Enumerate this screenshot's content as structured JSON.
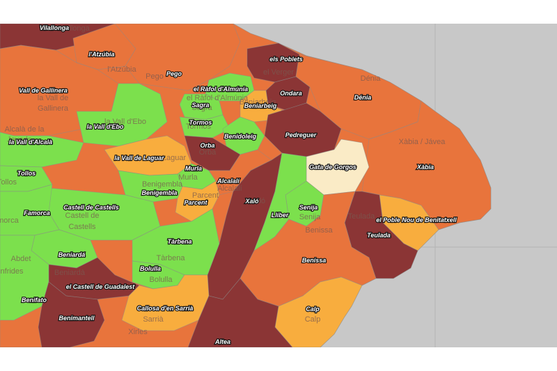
{
  "legend_colors": {
    "darkred": "#8b3535",
    "orange": "#e8743c",
    "lightorange": "#f8ad3e",
    "green": "#7ce04d",
    "cream": "#faebc6",
    "sea": "#c8c8c8"
  },
  "municipalities": [
    {
      "label": "Vilallonga",
      "color": "darkred"
    },
    {
      "label": "l'Atzúbia",
      "color": "orange"
    },
    {
      "label": "Pego",
      "color": "orange"
    },
    {
      "label": "els Poblets",
      "color": "darkred"
    },
    {
      "label": "Vall de Gallinera",
      "color": "orange"
    },
    {
      "label": "el Ràfol d'Almúnia",
      "color": "green"
    },
    {
      "label": "Ondara",
      "color": "darkred"
    },
    {
      "label": "Dénia",
      "color": "orange"
    },
    {
      "label": "Sagra",
      "color": "green"
    },
    {
      "label": "Beniarbeig",
      "color": "lightorange"
    },
    {
      "label": "la Vall d'Ebo",
      "color": "green"
    },
    {
      "label": "Tormos",
      "color": "green"
    },
    {
      "label": "Pedreguer",
      "color": "darkred"
    },
    {
      "label": "Benidoleig",
      "color": "green"
    },
    {
      "label": "la Vall d'Alcalà",
      "color": "green"
    },
    {
      "label": "Orba",
      "color": "darkred"
    },
    {
      "label": "Xàbia",
      "color": "orange"
    },
    {
      "label": "la Vall de Laguar",
      "color": "lightorange"
    },
    {
      "label": "Gata de Gorgos",
      "color": "cream"
    },
    {
      "label": "Murla",
      "color": "green"
    },
    {
      "label": "Tollos",
      "color": "green"
    },
    {
      "label": "Alcalalí",
      "color": "orange"
    },
    {
      "label": "Benigembla",
      "color": "green"
    },
    {
      "label": "Parcent",
      "color": "lightorange"
    },
    {
      "label": "Xaló",
      "color": "darkred"
    },
    {
      "label": "Senija",
      "color": "green"
    },
    {
      "label": "Castell de Castells",
      "color": "green"
    },
    {
      "label": "Famorca",
      "color": "green"
    },
    {
      "label": "Llíber",
      "color": "green"
    },
    {
      "label": "el Poble Nou de Benitatxell",
      "color": "lightorange"
    },
    {
      "label": "Teulada",
      "color": "darkred"
    },
    {
      "label": "Tàrbena",
      "color": "green"
    },
    {
      "label": "Beniardá",
      "color": "green"
    },
    {
      "label": "Benissa",
      "color": "orange"
    },
    {
      "label": "Bolulla",
      "color": "green"
    },
    {
      "label": "el Castell de Guadalest",
      "color": "darkred"
    },
    {
      "label": "Callosa d'en Sarrià",
      "color": "lightorange"
    },
    {
      "label": "Benifato",
      "color": "green"
    },
    {
      "label": "Calp",
      "color": "lightorange"
    },
    {
      "label": "Benimantell",
      "color": "darkred"
    },
    {
      "label": "Altea",
      "color": "darkred"
    }
  ],
  "base_map_labels": [
    "Vilallonga",
    "l'Atzúbia",
    "Pego",
    "el Verger",
    "Dénia",
    "la Vall de",
    "Gallinera",
    "el Ràfol d'Almúnia",
    "Sagra",
    "Beniarbeig",
    "la Vall d'Ebo",
    "Tormos",
    "Alcalà de la",
    "Jovada",
    "Xàbia / Jávea",
    "Orba",
    "Laguar",
    "Benigembla",
    "Murla",
    "Parcent",
    "Alcalalí",
    "Tollos",
    "Xaló",
    "Senija",
    "Benissa",
    "Castell de",
    "Castells",
    "Teulada",
    "Famorca",
    "Abdet",
    "Confrides",
    "Tàrbena",
    "Bolulla",
    "Sarrià",
    "Calp",
    "Xirles",
    "Beniardà"
  ]
}
